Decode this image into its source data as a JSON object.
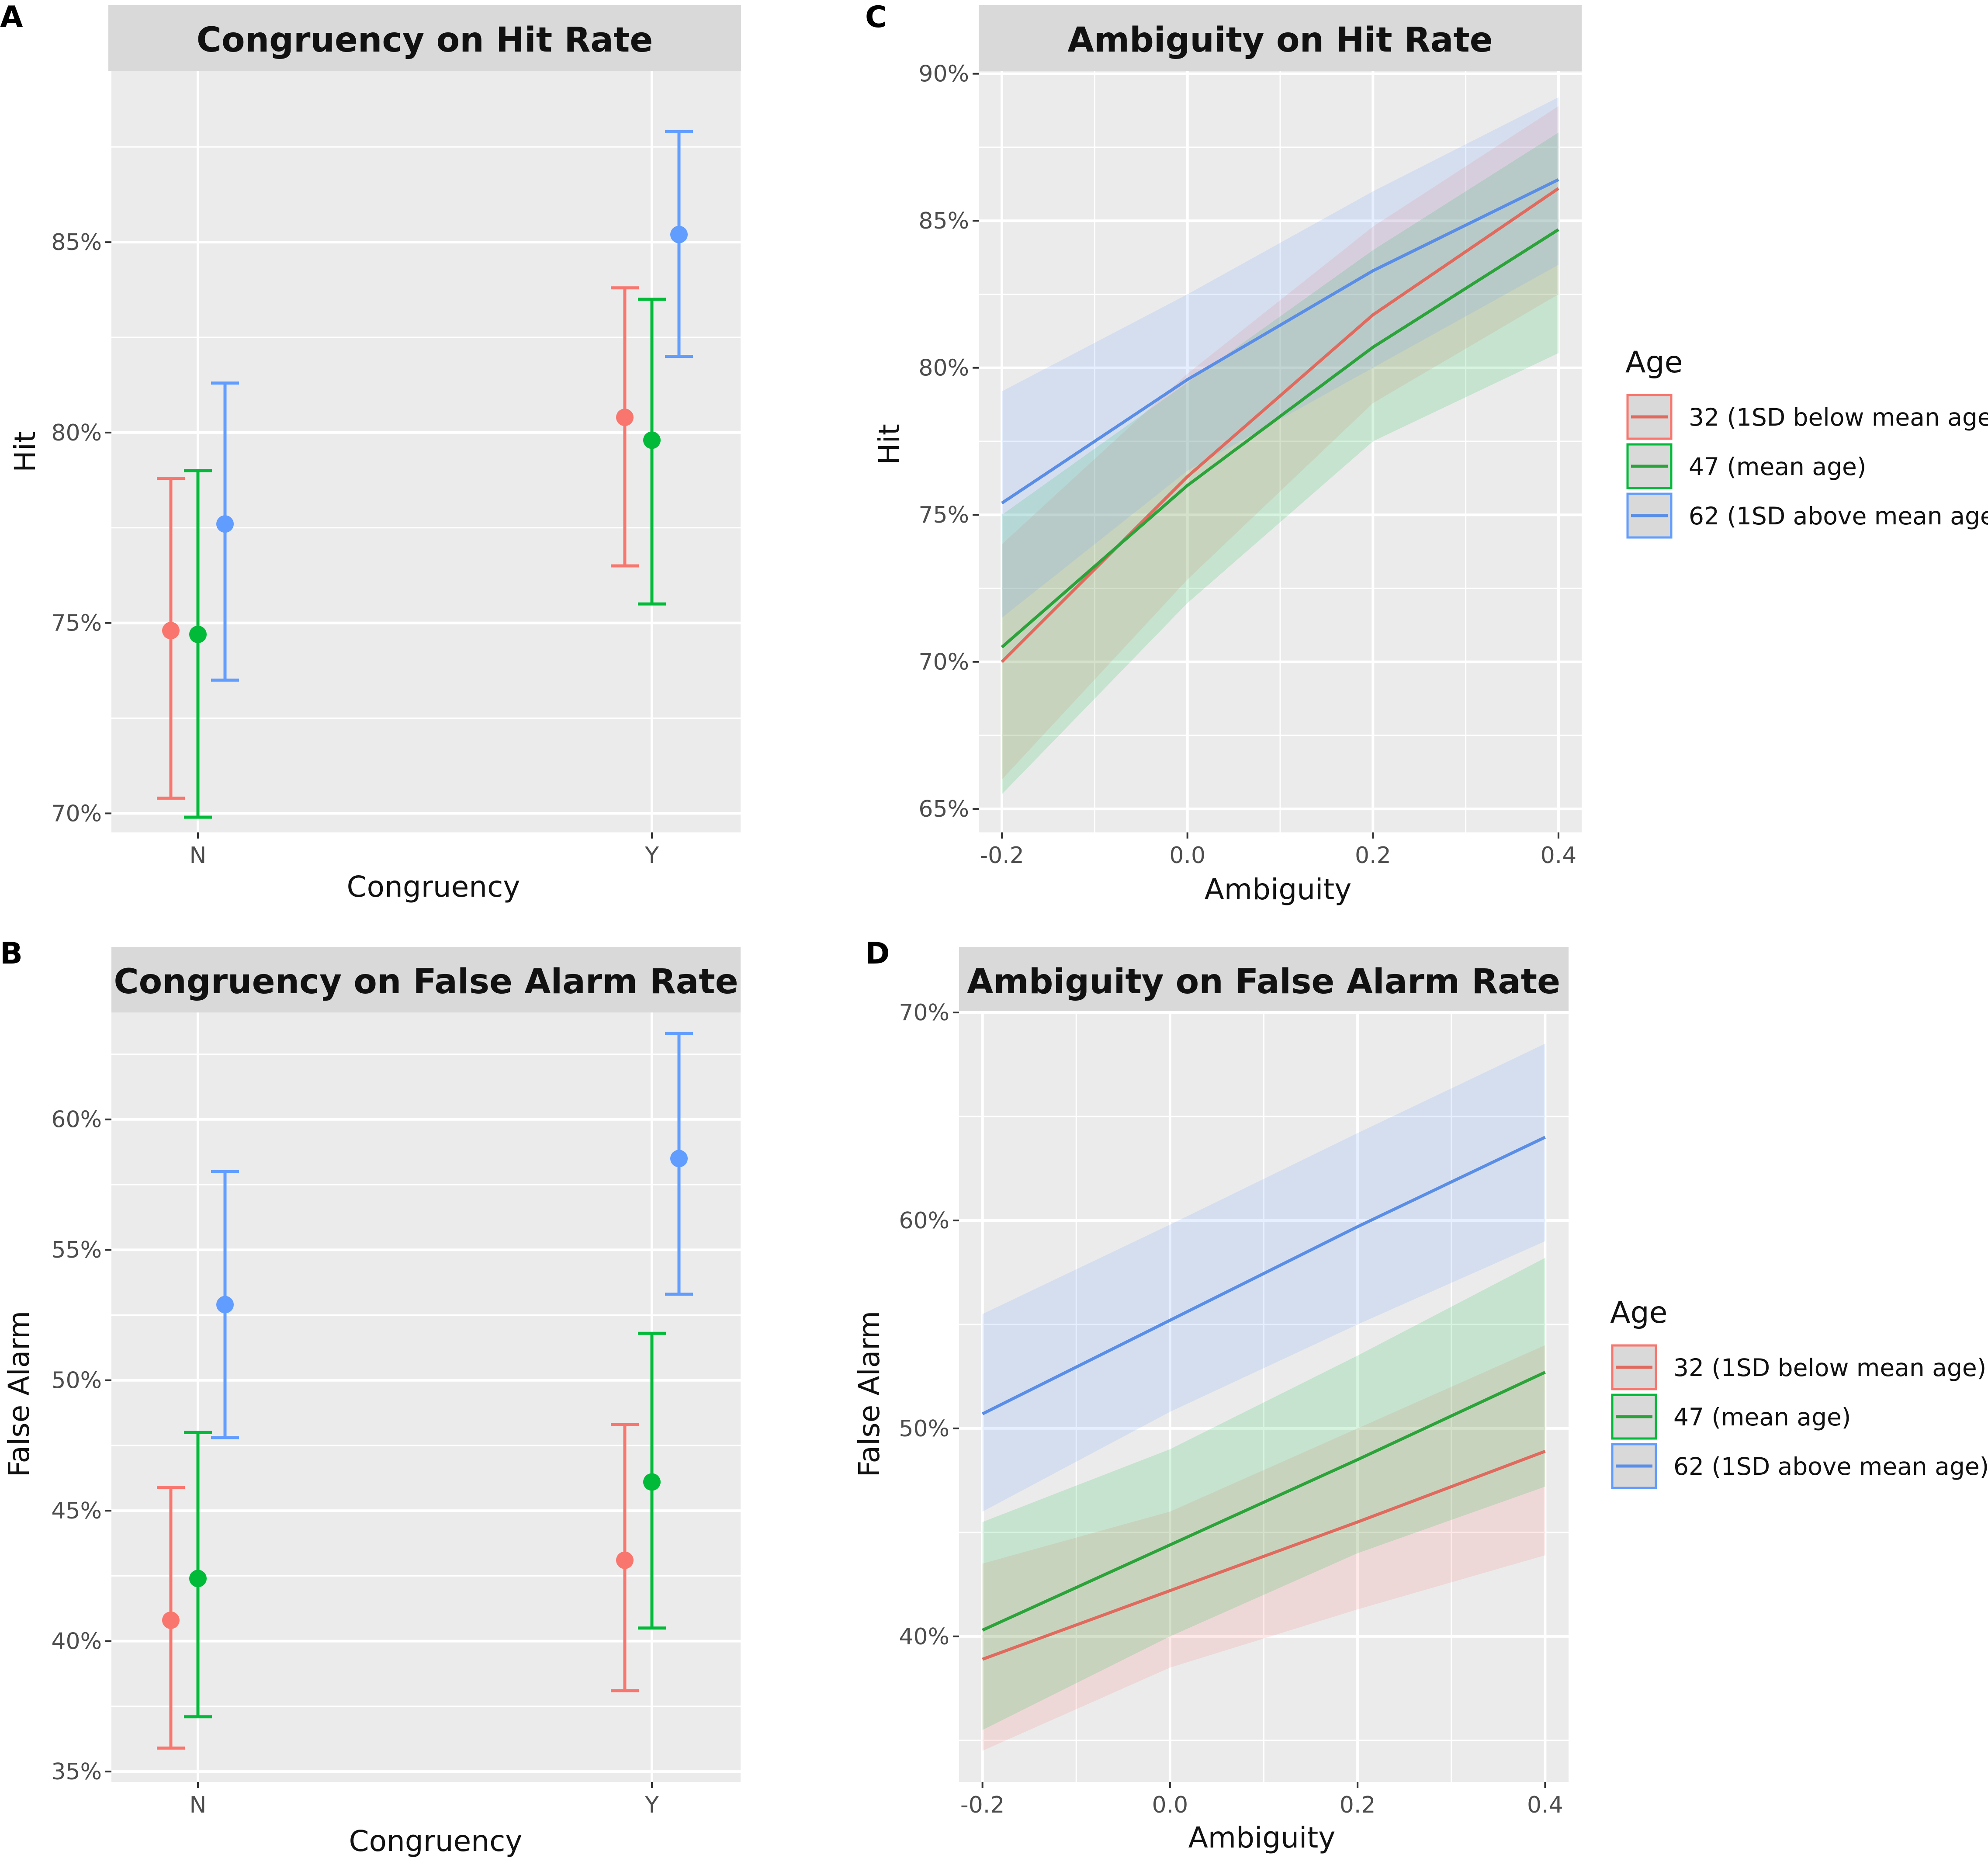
{
  "colors": {
    "age32": "#F8766D",
    "age47": "#00BA38",
    "age62": "#619CFF",
    "age32_line": "#E06A5E",
    "age47_line": "#2CA33A",
    "age62_line": "#5A8DE6",
    "panel_bg": "#EBEBEB",
    "strip_bg": "#D9D9D9",
    "grid": "#FFFFFF"
  },
  "legend": {
    "title": "Age",
    "items": [
      "32 (1SD below mean age)",
      "47 (mean age)",
      "62 (1SD above mean age)"
    ]
  },
  "chart_data": [
    {
      "id": "A",
      "panel_label": "A",
      "type": "errorbar",
      "title": "Congruency on Hit Rate",
      "xlabel": "Congruency",
      "ylabel": "Hit",
      "categories": [
        "N",
        "Y"
      ],
      "ylim": [
        69.5,
        89.5
      ],
      "yticks": [
        70,
        75,
        80,
        85
      ],
      "ytick_labels": [
        "70%",
        "75%",
        "80%",
        "85%"
      ],
      "series": [
        {
          "name": "32 (1SD below mean age)",
          "values": [
            74.8,
            80.4
          ],
          "lower": [
            70.4,
            76.5
          ],
          "upper": [
            78.8,
            83.8
          ]
        },
        {
          "name": "47 (mean age)",
          "values": [
            74.7,
            79.8
          ],
          "lower": [
            69.9,
            75.5
          ],
          "upper": [
            79.0,
            83.5
          ]
        },
        {
          "name": "62 (1SD above mean age)",
          "values": [
            77.6,
            85.2
          ],
          "lower": [
            73.5,
            82.0
          ],
          "upper": [
            81.3,
            87.9
          ]
        }
      ]
    },
    {
      "id": "B",
      "panel_label": "B",
      "type": "errorbar",
      "title": "Congruency on False Alarm Rate",
      "xlabel": "Congruency",
      "ylabel": "False Alarm",
      "categories": [
        "N",
        "Y"
      ],
      "ylim": [
        34.6,
        64.1
      ],
      "yticks": [
        35,
        40,
        45,
        50,
        55,
        60
      ],
      "ytick_labels": [
        "35%",
        "40%",
        "45%",
        "50%",
        "55%",
        "60%"
      ],
      "series": [
        {
          "name": "32 (1SD below mean age)",
          "values": [
            40.8,
            43.1
          ],
          "lower": [
            35.9,
            38.1
          ],
          "upper": [
            45.9,
            48.3
          ]
        },
        {
          "name": "47 (mean age)",
          "values": [
            42.4,
            46.1
          ],
          "lower": [
            37.1,
            40.5
          ],
          "upper": [
            48.0,
            51.8
          ]
        },
        {
          "name": "62 (1SD above mean age)",
          "values": [
            52.9,
            58.5
          ],
          "lower": [
            47.8,
            53.3
          ],
          "upper": [
            58.0,
            63.3
          ]
        }
      ]
    },
    {
      "id": "C",
      "panel_label": "C",
      "type": "line",
      "title": "Ambiguity on Hit Rate",
      "xlabel": "Ambiguity",
      "ylabel": "Hit",
      "x": [
        -0.2,
        0.0,
        0.2,
        0.4
      ],
      "xlim": [
        -0.225,
        0.425
      ],
      "xticks": [
        -0.2,
        0.0,
        0.2,
        0.4
      ],
      "xtick_labels": [
        "-0.2",
        "0.0",
        "0.2",
        "0.4"
      ],
      "ylim": [
        64.2,
        90.1
      ],
      "yticks": [
        65,
        70,
        75,
        80,
        85,
        90
      ],
      "ytick_labels": [
        "65%",
        "70%",
        "75%",
        "80%",
        "85%",
        "90%"
      ],
      "series": [
        {
          "name": "32 (1SD below mean age)",
          "values": [
            70.0,
            76.3,
            81.8,
            86.1
          ],
          "lower": [
            66.0,
            72.8,
            78.8,
            82.5
          ],
          "upper": [
            74.0,
            79.8,
            84.8,
            88.9
          ]
        },
        {
          "name": "47 (mean age)",
          "values": [
            70.5,
            76.0,
            80.7,
            84.7
          ],
          "lower": [
            65.5,
            72.0,
            77.5,
            80.5
          ],
          "upper": [
            75.0,
            79.5,
            84.0,
            88.0
          ]
        },
        {
          "name": "62 (1SD above mean age)",
          "values": [
            75.4,
            79.6,
            83.3,
            86.4
          ],
          "lower": [
            71.5,
            76.5,
            80.0,
            83.5
          ],
          "upper": [
            79.2,
            82.5,
            86.0,
            89.2
          ]
        }
      ]
    },
    {
      "id": "D",
      "panel_label": "D",
      "type": "line",
      "title": "Ambiguity on False Alarm Rate",
      "xlabel": "Ambiguity",
      "ylabel": "False Alarm",
      "x": [
        -0.2,
        0.0,
        0.2,
        0.4
      ],
      "xlim": [
        -0.225,
        0.425
      ],
      "xticks": [
        -0.2,
        0.0,
        0.2,
        0.4
      ],
      "xtick_labels": [
        "-0.2",
        "0.0",
        "0.2",
        "0.4"
      ],
      "ylim": [
        33.0,
        70.0
      ],
      "yticks": [
        40,
        50,
        60,
        70
      ],
      "ytick_labels": [
        "40%",
        "50%",
        "60%",
        "70%"
      ],
      "series": [
        {
          "name": "32 (1SD below mean age)",
          "values": [
            38.9,
            42.2,
            45.5,
            48.9
          ],
          "lower": [
            34.5,
            38.5,
            41.3,
            43.9
          ],
          "upper": [
            43.5,
            46.0,
            50.0,
            54.0
          ]
        },
        {
          "name": "47 (mean age)",
          "values": [
            40.3,
            44.4,
            48.5,
            52.7
          ],
          "lower": [
            35.5,
            40.0,
            44.0,
            47.2
          ],
          "upper": [
            45.5,
            49.0,
            53.5,
            58.2
          ]
        },
        {
          "name": "62 (1SD above mean age)",
          "values": [
            50.7,
            55.2,
            59.7,
            64.0
          ],
          "lower": [
            46.0,
            50.8,
            55.0,
            59.0
          ],
          "upper": [
            55.5,
            59.8,
            64.2,
            68.5
          ]
        }
      ]
    }
  ]
}
